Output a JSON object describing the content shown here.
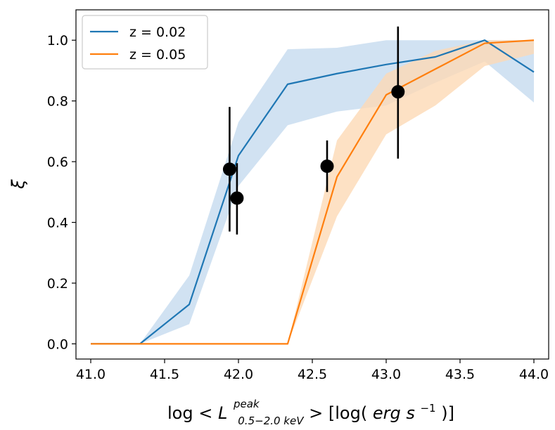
{
  "chart_data": {
    "type": "line",
    "xlabel_parts": {
      "prefix": "log <",
      "symbol": "L",
      "superscript": "peak",
      "subscript": "0.5−2.0 keV",
      "suffix": ">  [log(",
      "units": "erg s",
      "units_exp": "−1",
      "close": ")]"
    },
    "ylabel": "ξ",
    "xlim": [
      40.9,
      44.1
    ],
    "ylim": [
      -0.05,
      1.1
    ],
    "xticks": [
      41.0,
      41.5,
      42.0,
      42.5,
      43.0,
      43.5,
      44.0
    ],
    "xtick_labels": [
      "41.0",
      "41.5",
      "42.0",
      "42.5",
      "43.0",
      "43.5",
      "44.0"
    ],
    "yticks": [
      0.0,
      0.2,
      0.4,
      0.6,
      0.8,
      1.0
    ],
    "ytick_labels": [
      "0.0",
      "0.2",
      "0.4",
      "0.6",
      "0.8",
      "1.0"
    ],
    "grid": false,
    "legend_position": "top-left",
    "series": [
      {
        "name": "z = 0.02",
        "color": "#1f77b4",
        "band_color": "#c6dbef",
        "x": [
          41.0,
          41.333,
          41.667,
          42.0,
          42.333,
          42.667,
          43.0,
          43.333,
          43.667,
          44.0
        ],
        "y": [
          0.0,
          0.0,
          0.13,
          0.62,
          0.855,
          0.89,
          0.92,
          0.945,
          1.0,
          0.895
        ],
        "lower": [
          0.0,
          0.0,
          0.065,
          0.52,
          0.72,
          0.765,
          0.785,
          0.86,
          0.93,
          0.795
        ],
        "upper": [
          0.0,
          0.0,
          0.225,
          0.73,
          0.97,
          0.975,
          1.0,
          1.0,
          1.0,
          1.0
        ]
      },
      {
        "name": "z = 0.05",
        "color": "#ff7f0e",
        "band_color": "#fdd9b5",
        "x": [
          41.0,
          41.333,
          41.667,
          42.0,
          42.333,
          42.667,
          43.0,
          43.333,
          43.667,
          44.0
        ],
        "y": [
          0.0,
          0.0,
          0.0,
          0.0,
          0.0,
          0.55,
          0.82,
          0.905,
          0.99,
          1.0
        ],
        "lower": [
          0.0,
          0.0,
          0.0,
          0.0,
          0.0,
          0.42,
          0.69,
          0.785,
          0.915,
          0.955
        ],
        "upper": [
          0.0,
          0.0,
          0.0,
          0.0,
          0.0,
          0.67,
          0.89,
          0.965,
          1.0,
          1.0
        ]
      }
    ],
    "points": {
      "color": "#000000",
      "x": [
        41.94,
        41.99,
        42.6,
        43.08
      ],
      "y": [
        0.575,
        0.48,
        0.585,
        0.83
      ],
      "yerr_low": [
        0.37,
        0.36,
        0.5,
        0.61
      ],
      "yerr_high": [
        0.78,
        0.595,
        0.67,
        1.045
      ]
    }
  }
}
